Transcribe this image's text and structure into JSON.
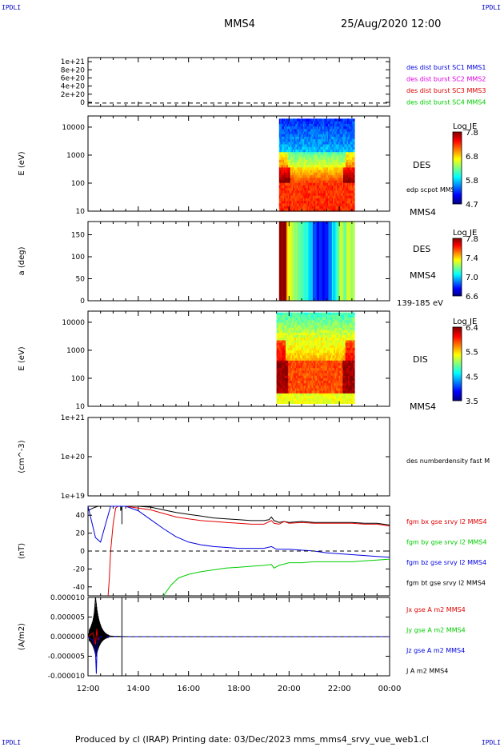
{
  "corner_labels": {
    "top_left": "IPDLI",
    "top_right": "IPDLI",
    "bottom_left": "IPDLI",
    "bottom_right": "IPDLI"
  },
  "header": {
    "spacecraft": "MMS4",
    "datetime": "25/Aug/2020 12:00"
  },
  "footer": {
    "text": "Produced by cl (IRAP)   Printing date: 03/Dec/2023   mms_mms4_srvy_vue_web1.cl"
  },
  "x_axis": {
    "ticks": [
      "12:00",
      "14:00",
      "16:00",
      "18:00",
      "20:00",
      "22:00",
      "00:00"
    ],
    "range_hours": [
      12,
      24
    ]
  },
  "colors": {
    "black": "#000000",
    "red": "#e00000",
    "green": "#00cc00",
    "blue": "#0000e0",
    "magenta": "#e000e0"
  },
  "chart_data": [
    {
      "type": "line",
      "panel": "burst",
      "ytick_labels": [
        "1e+21",
        "8e+20",
        "6e+20",
        "4e+20",
        "2e+20",
        "0"
      ],
      "yticks": [
        1e+21,
        8e+20,
        6e+20,
        4e+20,
        2e+20,
        0
      ],
      "ylim": [
        -1e+20,
        1.1e+21
      ],
      "legend": [
        {
          "text": "des dist burst SC1 MMS1",
          "color": "#0000e0"
        },
        {
          "text": "des dist burst SC2 MMS2",
          "color": "#e000e0"
        },
        {
          "text": "des dist burst SC3 MMS3",
          "color": "#e00000"
        },
        {
          "text": "des dist burst SC4 MMS4",
          "color": "#00cc00"
        }
      ],
      "series": []
    },
    {
      "type": "heatmap",
      "panel": "des_energy",
      "ylabel": "E (eV)",
      "ytick_labels": [
        "10000",
        "1000",
        "100",
        "10"
      ],
      "ylog": true,
      "ylim": [
        10,
        25000
      ],
      "data_x_range": [
        19.6,
        22.6
      ],
      "label": "DES",
      "colorbar": {
        "title": "Log JE",
        "ticks": [
          "7.8",
          "6.8",
          "5.8",
          "4.7"
        ],
        "range": [
          4.7,
          7.9
        ]
      },
      "side_labels": [
        "edp scpot MMS4",
        "MMS4"
      ]
    },
    {
      "type": "heatmap",
      "panel": "des_pitch",
      "ylabel": "a (deg)",
      "ytick_labels": [
        "150",
        "100",
        "50",
        "0"
      ],
      "ylim": [
        0,
        180
      ],
      "data_x_range": [
        19.6,
        22.6
      ],
      "label": "DES",
      "colorbar": {
        "title": "Log JE",
        "ticks": [
          "7.8",
          "7.4",
          "7.0",
          "6.6"
        ],
        "range": [
          6.6,
          7.9
        ]
      },
      "side_labels": [
        "MMS4",
        "139-185 eV"
      ]
    },
    {
      "type": "heatmap",
      "panel": "dis_energy",
      "ylabel": "E (eV)",
      "ytick_labels": [
        "10000",
        "1000",
        "100",
        "10"
      ],
      "ylog": true,
      "ylim": [
        10,
        25000
      ],
      "data_x_range": [
        19.5,
        22.6
      ],
      "label": "DIS",
      "colorbar": {
        "title": "Log JE",
        "ticks": [
          "6.4",
          "5.5",
          "4.5",
          "3.5"
        ],
        "range": [
          3.5,
          6.6
        ]
      },
      "side_labels": [
        "MMS4"
      ]
    },
    {
      "type": "line",
      "panel": "density",
      "ylabel": "(cm^-3)",
      "ytick_labels": [
        "1e+21",
        "1e+20",
        "1e+19"
      ],
      "ylog": true,
      "ylim": [
        1e+19,
        1e+21
      ],
      "legend": [
        {
          "text": "des numberdensity fast M",
          "color": "#000000"
        }
      ],
      "series": []
    },
    {
      "type": "line",
      "panel": "fgm",
      "ylabel": "(nT)",
      "ytick_labels": [
        "40",
        "20",
        "0",
        "-20",
        "-40"
      ],
      "yticks": [
        40,
        20,
        0,
        -20,
        -40
      ],
      "ylim": [
        -50,
        50
      ],
      "legend": [
        {
          "text": "fgm bx gse srvy l2 MMS4",
          "color": "#e00000"
        },
        {
          "text": "fgm by gse srvy l2 MMS4",
          "color": "#00cc00"
        },
        {
          "text": "fgm bz gse srvy l2 MMS4",
          "color": "#0000e0"
        },
        {
          "text": "fgm bt gse srvy l2 MMS4",
          "color": "#000000"
        }
      ],
      "series": [
        {
          "color": "#000000",
          "x": [
            12.0,
            12.2,
            12.4,
            12.9,
            13.1,
            13.3,
            13.3,
            13.35,
            14.0,
            14.5,
            15.0,
            15.5,
            16.0,
            16.5,
            17.0,
            17.5,
            18.0,
            18.5,
            19.0,
            19.2,
            19.3,
            19.4,
            19.6,
            19.8,
            20.0,
            20.5,
            21.0,
            21.5,
            22.0,
            22.5,
            23.0,
            23.5,
            24.0
          ],
          "y": [
            45,
            48,
            50,
            50,
            50,
            50,
            45,
            50,
            50,
            49,
            46,
            43,
            41,
            39,
            37,
            36,
            35,
            34,
            34,
            35,
            38,
            34,
            32,
            33,
            32,
            33,
            32,
            32,
            32,
            32,
            31,
            31,
            29
          ]
        },
        {
          "color": "#e00000",
          "x": [
            12.8,
            12.85,
            12.9,
            13.0,
            13.1,
            13.2,
            13.5,
            14.0,
            14.5,
            15.0,
            15.5,
            16.0,
            16.5,
            17.0,
            17.5,
            18.0,
            18.5,
            19.0,
            19.3,
            19.4,
            19.6,
            19.8,
            20.0,
            20.5,
            21.0,
            21.5,
            22.0,
            22.5,
            23.0,
            23.5,
            24.0
          ],
          "y": [
            -50,
            -30,
            0,
            30,
            48,
            50,
            50,
            48,
            46,
            42,
            38,
            36,
            34,
            33,
            32,
            31,
            30,
            30,
            34,
            31,
            30,
            33,
            31,
            32,
            31,
            31,
            31,
            31,
            30,
            30,
            28
          ]
        },
        {
          "color": "#0000e0",
          "x": [
            12.0,
            12.3,
            12.5,
            12.6,
            12.8,
            12.9,
            13.0,
            13.2,
            13.5,
            14.0,
            14.5,
            15.0,
            15.5,
            16.0,
            16.5,
            17.0,
            17.5,
            18.0,
            18.5,
            19.0,
            19.3,
            19.5,
            20.0,
            20.5,
            21.0,
            21.5,
            22.0,
            22.5,
            23.0,
            23.5,
            24.0
          ],
          "y": [
            50,
            15,
            10,
            20,
            40,
            50,
            50,
            50,
            50,
            45,
            35,
            25,
            16,
            10,
            7,
            5,
            4,
            3,
            3,
            3,
            5,
            2,
            2,
            1,
            0,
            -2,
            -3,
            -4,
            -5,
            -6,
            -7
          ]
        },
        {
          "color": "#00cc00",
          "x": [
            15.0,
            15.3,
            15.6,
            16.0,
            16.5,
            17.0,
            17.5,
            18.0,
            18.5,
            19.0,
            19.3,
            19.4,
            19.6,
            20.0,
            20.5,
            21.0,
            21.5,
            22.0,
            22.5,
            23.0,
            23.5,
            24.0
          ],
          "y": [
            -50,
            -38,
            -30,
            -26,
            -23,
            -21,
            -19,
            -18,
            -17,
            -16,
            -15,
            -19,
            -16,
            -13,
            -13,
            -12,
            -12,
            -12,
            -12,
            -11,
            -10,
            -9
          ]
        }
      ],
      "zero_line": true
    },
    {
      "type": "line",
      "panel": "current",
      "ylabel": "(A/m2)",
      "ytick_labels": [
        "0.000010",
        "0.000005",
        "0.000000",
        "-0.000005",
        "-0.000010"
      ],
      "yticks": [
        1e-05,
        5e-06,
        0,
        -5e-06,
        -1e-05
      ],
      "ylim": [
        -1e-05,
        1e-05
      ],
      "legend": [
        {
          "text": "Jx gse A m2 MMS4",
          "color": "#e00000"
        },
        {
          "text": "Jy gse A m2 MMS4",
          "color": "#00cc00"
        },
        {
          "text": "Jz gse A m2 MMS4",
          "color": "#0000e0"
        },
        {
          "text": "J A m2 MMS4",
          "color": "#000000"
        }
      ],
      "series": [
        {
          "color": "#000000",
          "x": [
            12.0,
            12.1,
            12.2,
            12.25,
            12.3,
            12.35,
            12.4,
            12.45,
            12.5,
            12.6,
            12.8,
            13.0,
            13.5,
            24.0
          ],
          "y": [
            0,
            2e-06,
            4e-06,
            6e-06,
            1e-05,
            7e-06,
            4e-06,
            2e-06,
            1e-06,
            5e-07,
            2e-07,
            1e-07,
            0,
            0
          ]
        },
        {
          "color": "#e00000",
          "x": [
            12.0,
            12.2,
            12.3,
            12.35,
            12.4,
            12.5,
            12.8,
            24.0
          ],
          "y": [
            0,
            1e-06,
            -2e-06,
            2e-06,
            -1e-06,
            0,
            0,
            0
          ]
        },
        {
          "color": "#0000e0",
          "x": [
            12.0,
            12.2,
            12.3,
            12.33,
            12.36,
            12.4,
            12.5,
            12.8,
            24.0
          ],
          "y": [
            0,
            -1e-06,
            -4e-06,
            -9.5e-06,
            -3e-06,
            -1e-06,
            0,
            0,
            0
          ]
        }
      ],
      "zero_line": true
    }
  ]
}
